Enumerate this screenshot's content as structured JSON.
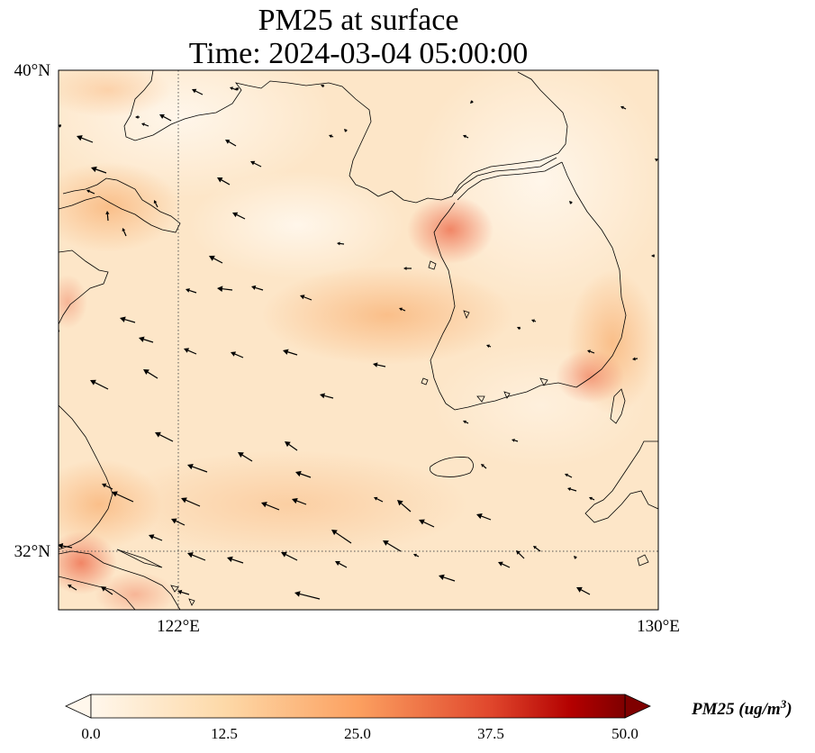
{
  "title_line1": "PM25 at surface",
  "title_line2": "Time: 2024-03-04 05:00:00",
  "lat_ticks": [
    {
      "value": 40,
      "label": "40°N"
    },
    {
      "value": 32,
      "label": "32°N"
    }
  ],
  "lon_ticks": [
    {
      "value": 122,
      "label": "122°E"
    },
    {
      "value": 130,
      "label": "130°E"
    }
  ],
  "extent": {
    "lon_min": 120,
    "lon_max": 130,
    "lat_min": 31,
    "lat_max": 40
  },
  "colorbar": {
    "ticks": [
      "0.0",
      "12.5",
      "25.0",
      "37.5",
      "50.0"
    ],
    "label_main": "PM25 (ug/m",
    "label_sup": "3",
    "label_end": ")",
    "colormap": "OrRd",
    "colors": [
      "#fff7ec",
      "#fdd49e",
      "#fc8d59",
      "#d7301f",
      "#7f0000"
    ],
    "extend": "both"
  },
  "gridlines": "dotted"
}
